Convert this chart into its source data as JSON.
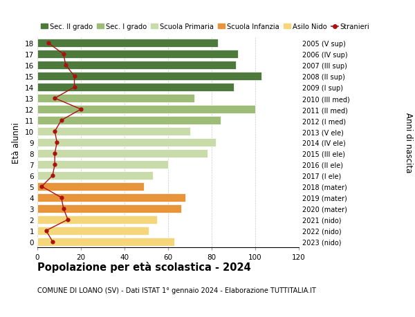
{
  "ages": [
    0,
    1,
    2,
    3,
    4,
    5,
    6,
    7,
    8,
    9,
    10,
    11,
    12,
    13,
    14,
    15,
    16,
    17,
    18
  ],
  "bar_values": [
    63,
    51,
    55,
    66,
    68,
    49,
    53,
    60,
    78,
    82,
    70,
    84,
    100,
    72,
    90,
    103,
    91,
    92,
    83
  ],
  "bar_colors": [
    "#f5d67a",
    "#f5d67a",
    "#f5d67a",
    "#e8943a",
    "#e8943a",
    "#e8943a",
    "#c8dba8",
    "#c8dba8",
    "#c8dba8",
    "#c8dba8",
    "#c8dba8",
    "#9dbc78",
    "#9dbc78",
    "#9dbc78",
    "#4d7a3c",
    "#4d7a3c",
    "#4d7a3c",
    "#4d7a3c",
    "#4d7a3c"
  ],
  "stranieri_values": [
    7,
    4,
    14,
    12,
    11,
    2,
    7,
    8,
    8,
    9,
    8,
    11,
    20,
    8,
    17,
    17,
    13,
    12,
    5
  ],
  "right_labels": [
    "2023 (nido)",
    "2022 (nido)",
    "2021 (nido)",
    "2020 (mater)",
    "2019 (mater)",
    "2018 (mater)",
    "2017 (I ele)",
    "2016 (II ele)",
    "2015 (III ele)",
    "2014 (IV ele)",
    "2013 (V ele)",
    "2012 (I med)",
    "2011 (II med)",
    "2010 (III med)",
    "2009 (I sup)",
    "2008 (II sup)",
    "2007 (III sup)",
    "2006 (IV sup)",
    "2005 (V sup)"
  ],
  "legend_labels": [
    "Sec. II grado",
    "Sec. I grado",
    "Scuola Primaria",
    "Scuola Infanzia",
    "Asilo Nido",
    "Stranieri"
  ],
  "legend_colors": [
    "#4d7a3c",
    "#9dbc78",
    "#c8dba8",
    "#e8943a",
    "#f5d67a",
    "#aa1111"
  ],
  "xlabel_right": "Anni di nascita",
  "ylabel": "Età alunni",
  "title": "Popolazione per età scolastica - 2024",
  "subtitle": "COMUNE DI LOANO (SV) - Dati ISTAT 1° gennaio 2024 - Elaborazione TUTTITALIA.IT",
  "xlim": [
    0,
    120
  ],
  "xticks": [
    0,
    20,
    40,
    60,
    80,
    100,
    120
  ],
  "background_color": "#ffffff",
  "grid_color": "#cccccc"
}
